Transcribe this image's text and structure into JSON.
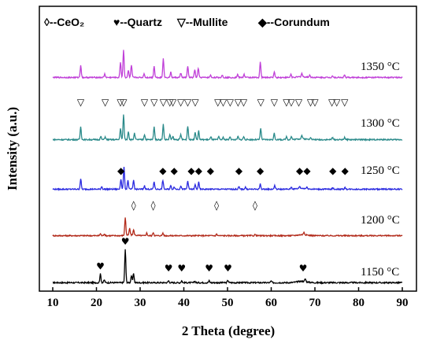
{
  "chart_data": {
    "type": "line",
    "xlabel": "2 Theta (degree)",
    "ylabel": "Intensity (a.u.)",
    "xlim": [
      10,
      90
    ],
    "xticks": [
      "10",
      "20",
      "30",
      "40",
      "50",
      "60",
      "70",
      "80",
      "90"
    ],
    "legend": [
      {
        "symbol": "◊",
        "label": "--CeO₂"
      },
      {
        "symbol": "♥",
        "label": "--Quartz"
      },
      {
        "symbol": "▽",
        "label": "--Mullite"
      },
      {
        "symbol": "◆",
        "label": "--Corundum"
      }
    ],
    "series": [
      {
        "name": "1150 °C",
        "color": "#000000",
        "baseline": 0.35,
        "peaks": [
          [
            20.9,
            2.2
          ],
          [
            21.8,
            0.7
          ],
          [
            26.6,
            8.5
          ],
          [
            28.0,
            1.8
          ],
          [
            28.5,
            2.4
          ],
          [
            36.5,
            0.5
          ],
          [
            39.5,
            0.5
          ],
          [
            42.5,
            0.4
          ],
          [
            45.8,
            0.5
          ],
          [
            50.1,
            0.6
          ],
          [
            60.0,
            0.4
          ],
          [
            67.8,
            0.7
          ]
        ],
        "humps": [
          [
            67.0,
            0.35
          ]
        ],
        "markers": {
          "symbol": "♥",
          "x": [
            20.9,
            26.6,
            36.5,
            39.5,
            45.8,
            50.1,
            67.3
          ]
        }
      },
      {
        "name": "1200 °C",
        "color": "#b22a1a",
        "baseline": 0.35,
        "peaks": [
          [
            20.9,
            0.6
          ],
          [
            21.8,
            0.6
          ],
          [
            26.6,
            5.5
          ],
          [
            27.6,
            2.0
          ],
          [
            28.5,
            1.6
          ],
          [
            31.5,
            0.8
          ],
          [
            33.0,
            1.0
          ],
          [
            35.2,
            0.8
          ],
          [
            47.5,
            0.5
          ],
          [
            56.3,
            0.4
          ],
          [
            67.5,
            0.8
          ]
        ],
        "humps": [
          [
            67.2,
            0.3
          ],
          [
            28.0,
            0.2
          ]
        ],
        "markers": {
          "symbol": "◊",
          "x": [
            28.5,
            33.0,
            47.5,
            56.3
          ]
        }
      },
      {
        "name": "1250 °C",
        "color": "#2a2ae0",
        "baseline": 0.35,
        "peaks": [
          [
            16.4,
            3.0
          ],
          [
            21.2,
            0.8
          ],
          [
            25.6,
            3.0
          ],
          [
            26.3,
            6.6
          ],
          [
            27.2,
            2.6
          ],
          [
            28.5,
            2.6
          ],
          [
            31.0,
            1.0
          ],
          [
            33.2,
            2.2
          ],
          [
            35.2,
            2.6
          ],
          [
            37.0,
            1.0
          ],
          [
            37.8,
            0.7
          ],
          [
            39.3,
            1.0
          ],
          [
            40.9,
            2.4
          ],
          [
            42.6,
            1.3
          ],
          [
            43.4,
            2.0
          ],
          [
            52.6,
            0.7
          ],
          [
            54.1,
            0.6
          ],
          [
            57.5,
            1.5
          ],
          [
            60.8,
            1.1
          ],
          [
            64.6,
            0.6
          ],
          [
            66.5,
            0.6
          ],
          [
            68.2,
            0.5
          ],
          [
            74.1,
            0.4
          ],
          [
            76.9,
            0.5
          ]
        ],
        "humps": [
          [
            67.0,
            0.25
          ]
        ],
        "markers": {
          "symbol": "◆",
          "x": [
            25.6,
            35.2,
            37.8,
            41.7,
            43.4,
            46.1,
            52.6,
            57.5,
            66.5,
            68.2,
            74.1,
            76.9
          ]
        }
      },
      {
        "name": "1300 °C",
        "color": "#2a8a8a",
        "baseline": 0.35,
        "peaks": [
          [
            16.4,
            3.8
          ],
          [
            21.0,
            0.9
          ],
          [
            22.0,
            0.8
          ],
          [
            25.5,
            3.2
          ],
          [
            26.2,
            7.2
          ],
          [
            27.3,
            2.4
          ],
          [
            28.7,
            1.8
          ],
          [
            31.0,
            1.5
          ],
          [
            33.2,
            3.8
          ],
          [
            35.3,
            4.4
          ],
          [
            36.8,
            1.4
          ],
          [
            37.5,
            0.9
          ],
          [
            39.3,
            1.5
          ],
          [
            40.9,
            4.0
          ],
          [
            42.6,
            2.2
          ],
          [
            43.4,
            2.5
          ],
          [
            46.2,
            0.8
          ],
          [
            48.0,
            0.8
          ],
          [
            49.0,
            0.6
          ],
          [
            50.6,
            0.9
          ],
          [
            52.4,
            0.9
          ],
          [
            53.7,
            0.9
          ],
          [
            57.6,
            3.3
          ],
          [
            60.7,
            1.8
          ],
          [
            63.5,
            0.9
          ],
          [
            64.6,
            0.9
          ],
          [
            67.0,
            1.0
          ],
          [
            69.0,
            0.7
          ],
          [
            74.0,
            0.6
          ],
          [
            76.8,
            0.7
          ]
        ],
        "humps": [
          [
            67.0,
            0.25
          ]
        ],
        "markers": {
          "symbol": "▽",
          "x": [
            16.4,
            22.0,
            25.5,
            26.2,
            31.0,
            33.2,
            35.3,
            36.8,
            37.5,
            39.3,
            40.9,
            42.6,
            47.8,
            49.0,
            50.6,
            52.4,
            53.7,
            57.6,
            60.7,
            63.5,
            64.6,
            66.3,
            69.0,
            70.0,
            73.9,
            75.0,
            76.8
          ]
        }
      },
      {
        "name": "1350 °C",
        "color": "#c040d8",
        "baseline": 0.35,
        "peaks": [
          [
            16.4,
            3.6
          ],
          [
            21.9,
            1.0
          ],
          [
            25.5,
            4.5
          ],
          [
            26.2,
            8.0
          ],
          [
            27.3,
            2.0
          ],
          [
            28.0,
            3.5
          ],
          [
            30.9,
            1.1
          ],
          [
            33.2,
            3.3
          ],
          [
            35.3,
            5.6
          ],
          [
            37.0,
            1.5
          ],
          [
            39.3,
            1.3
          ],
          [
            40.9,
            3.2
          ],
          [
            42.5,
            2.3
          ],
          [
            43.3,
            2.7
          ],
          [
            46.1,
            0.6
          ],
          [
            48.8,
            0.7
          ],
          [
            52.3,
            0.9
          ],
          [
            53.8,
            0.9
          ],
          [
            57.5,
            4.5
          ],
          [
            60.7,
            1.6
          ],
          [
            64.5,
            0.9
          ],
          [
            67.0,
            1.0
          ],
          [
            68.8,
            0.6
          ],
          [
            74.0,
            0.5
          ],
          [
            76.8,
            0.7
          ]
        ],
        "humps": [
          [
            67.0,
            0.2
          ]
        ],
        "markers": null
      }
    ]
  }
}
